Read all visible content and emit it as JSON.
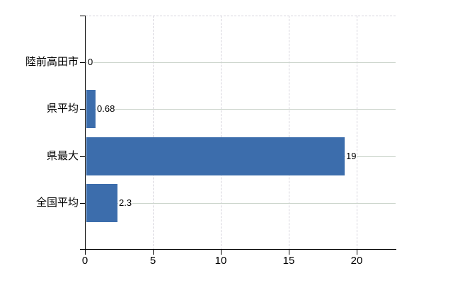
{
  "chart_data": {
    "type": "bar",
    "orientation": "horizontal",
    "title": "",
    "xlabel": "",
    "ylabel": "",
    "categories": [
      "陸前高田市",
      "県平均",
      "県最大",
      "全国平均"
    ],
    "values": [
      0,
      0.68,
      19,
      2.3
    ],
    "value_labels": [
      "0",
      "0.68",
      "19",
      "2.3"
    ],
    "x_ticks": [
      0,
      5,
      10,
      15,
      20
    ],
    "x_tick_labels": [
      "0",
      "5",
      "10",
      "15",
      "20"
    ],
    "xlim": [
      0,
      22.8
    ],
    "grid": true,
    "legend": false,
    "colors": {
      "bar": "#3c6dac",
      "axis": "#000000",
      "h_gridline": "#ccd5cc",
      "v_gridline": "#d6d4dc",
      "text": "#000000",
      "background": "#ffffff"
    }
  }
}
